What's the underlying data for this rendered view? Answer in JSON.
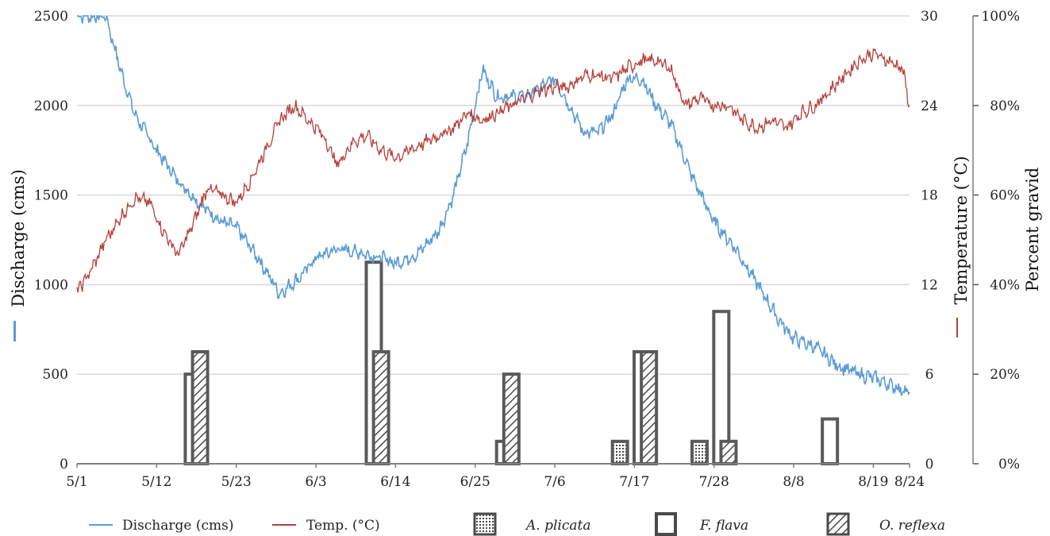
{
  "chart_data": {
    "type": "line",
    "xlabel": "",
    "x_ticks": [
      "5/1",
      "5/12",
      "5/23",
      "6/3",
      "6/14",
      "6/25",
      "7/6",
      "7/17",
      "7/28",
      "8/8",
      "8/19",
      "8/24"
    ],
    "x_tick_days": [
      0,
      11,
      22,
      33,
      44,
      55,
      66,
      77,
      88,
      99,
      110,
      115
    ],
    "axes": {
      "left": {
        "label": "Discharge (cms)",
        "ylim": [
          0,
          2500
        ],
        "ticks": [
          "0",
          "500",
          "1000",
          "1500",
          "2000",
          "2500"
        ]
      },
      "right1": {
        "label": "Temperature (°C)",
        "ylim": [
          0,
          30
        ],
        "ticks": [
          "0",
          "6",
          "12",
          "18",
          "24",
          "30"
        ]
      },
      "right2": {
        "label": "Percent gravid",
        "ylim": [
          0,
          100
        ],
        "ticks": [
          "0%",
          "20%",
          "40%",
          "60%",
          "80%",
          "100%"
        ]
      }
    },
    "grid": true,
    "legend_position": "bottom",
    "colors": {
      "discharge": "#5b9bd5",
      "temperature": "#b5413b",
      "bar_stroke": "#5a5a5a",
      "grid": "#d9d9d9"
    },
    "series": [
      {
        "name": "Discharge (cms)",
        "axis": "left",
        "type": "line",
        "x_dates": [
          "5/1",
          "5/5",
          "5/7",
          "5/9",
          "5/12",
          "5/15",
          "5/18",
          "5/21",
          "5/23",
          "5/26",
          "5/29",
          "6/1",
          "6/3",
          "6/6",
          "6/9",
          "6/12",
          "6/14",
          "6/17",
          "6/20",
          "6/22",
          "6/24",
          "6/26",
          "6/28",
          "6/30",
          "7/2",
          "7/4",
          "7/6",
          "7/8",
          "7/10",
          "7/12",
          "7/14",
          "7/16",
          "7/18",
          "7/20",
          "7/22",
          "7/25",
          "7/28",
          "7/31",
          "8/3",
          "8/6",
          "8/8",
          "8/11",
          "8/14",
          "8/17",
          "8/19",
          "8/22",
          "8/24"
        ],
        "values": [
          2500,
          2500,
          2200,
          1950,
          1750,
          1580,
          1450,
          1350,
          1320,
          1150,
          950,
          1050,
          1150,
          1200,
          1180,
          1150,
          1120,
          1170,
          1300,
          1500,
          1800,
          2200,
          2050,
          2050,
          2050,
          2100,
          2150,
          2000,
          1850,
          1850,
          1950,
          2150,
          2150,
          2000,
          1900,
          1600,
          1350,
          1200,
          1000,
          800,
          700,
          650,
          550,
          500,
          480,
          430,
          400
        ]
      },
      {
        "name": "Temp. (°C)",
        "axis": "right1",
        "type": "line",
        "x_dates": [
          "5/1",
          "5/3",
          "5/5",
          "5/7",
          "5/9",
          "5/11",
          "5/13",
          "5/15",
          "5/17",
          "5/19",
          "5/21",
          "5/23",
          "5/25",
          "5/27",
          "5/29",
          "5/31",
          "6/2",
          "6/4",
          "6/6",
          "6/8",
          "6/10",
          "6/12",
          "6/14",
          "6/16",
          "6/18",
          "6/20",
          "6/22",
          "6/24",
          "6/26",
          "6/28",
          "6/30",
          "7/2",
          "7/4",
          "7/6",
          "7/8",
          "7/10",
          "7/12",
          "7/14",
          "7/16",
          "7/18",
          "7/20",
          "7/22",
          "7/24",
          "7/26",
          "7/28",
          "7/30",
          "8/1",
          "8/3",
          "8/5",
          "8/7",
          "8/9",
          "8/11",
          "8/13",
          "8/15",
          "8/17",
          "8/19",
          "8/21",
          "8/23",
          "8/24"
        ],
        "values": [
          11.5,
          13,
          15,
          16.5,
          17.8,
          17.5,
          15.5,
          14,
          16,
          18.5,
          18,
          17.5,
          19,
          21,
          23,
          24,
          23,
          22,
          20,
          21.5,
          22,
          21,
          20.5,
          21,
          21.5,
          22,
          22.5,
          23.5,
          23,
          23.5,
          24,
          24.5,
          25,
          25.2,
          25.3,
          26,
          26,
          25.8,
          26.5,
          27,
          27,
          26.5,
          24,
          24.5,
          24,
          24,
          23,
          22.5,
          23,
          22.5,
          23.5,
          24,
          25,
          26,
          27,
          27.5,
          27,
          26.5,
          24
        ]
      },
      {
        "name": "A. plicata",
        "axis": "right2",
        "type": "bar",
        "pattern": "dotted",
        "x_dates": [
          "7/15",
          "7/26"
        ],
        "values": [
          5,
          5
        ]
      },
      {
        "name": "F. flava",
        "axis": "right2",
        "type": "bar",
        "pattern": "open",
        "x_dates": [
          "5/17",
          "6/11",
          "6/29",
          "7/18",
          "7/29",
          "8/13"
        ],
        "values": [
          20,
          45,
          5,
          25,
          34,
          10
        ]
      },
      {
        "name": "O. reflexa",
        "axis": "right2",
        "type": "bar",
        "pattern": "hatched",
        "x_dates": [
          "5/18",
          "6/12",
          "6/30",
          "7/19",
          "7/30"
        ],
        "values": [
          25,
          25,
          20,
          25,
          5
        ]
      }
    ]
  },
  "legend": [
    {
      "label": "Discharge (cms)",
      "symbol": "line",
      "color": "#5b9bd5",
      "italic": false
    },
    {
      "label": "Temp. (°C)",
      "symbol": "line",
      "color": "#b5413b",
      "italic": false
    },
    {
      "label": "A. plicata",
      "symbol": "dotted-box",
      "italic": true
    },
    {
      "label": "F. flava",
      "symbol": "open-box",
      "italic": true
    },
    {
      "label": "O. reflexa",
      "symbol": "hatched-box",
      "italic": true
    }
  ]
}
